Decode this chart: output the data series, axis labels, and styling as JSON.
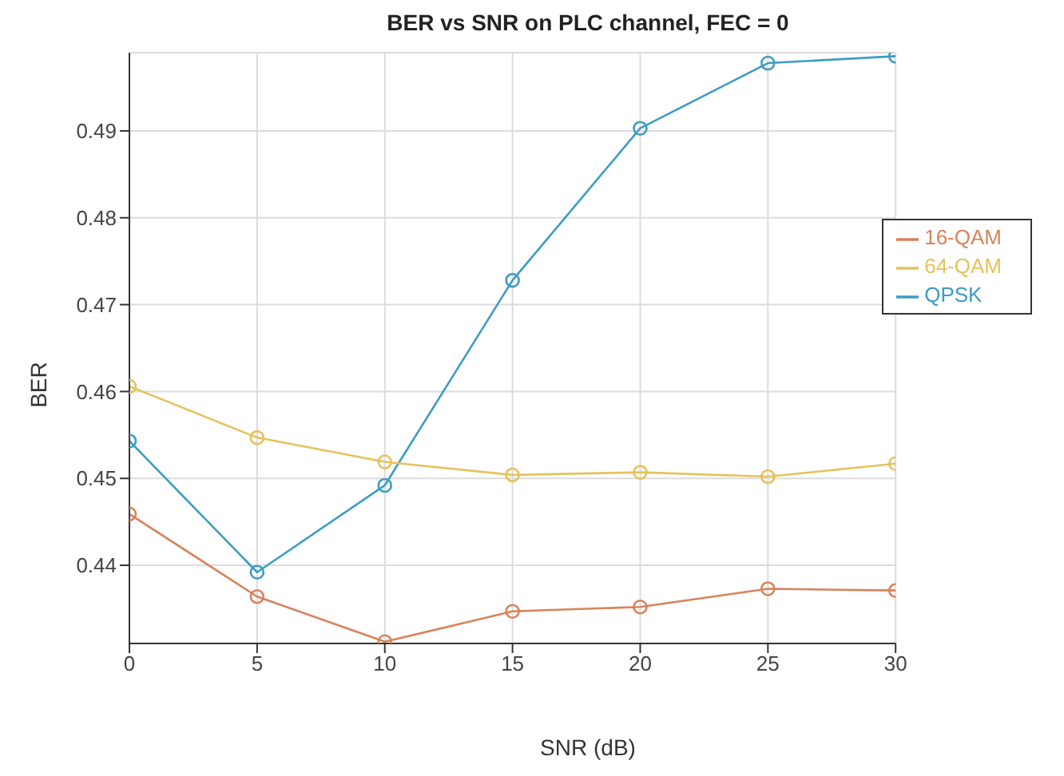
{
  "chart_data": {
    "type": "line",
    "title": "BER vs SNR on PLC channel, FEC = 0",
    "xlabel": "SNR (dB)",
    "ylabel": "BER",
    "x": [
      0,
      5,
      10,
      15,
      20,
      25,
      30
    ],
    "series": [
      {
        "name": "QPSK",
        "color": "#3d9cc4",
        "values": [
          0.4543,
          0.4392,
          0.4492,
          0.4728,
          0.4903,
          0.4978,
          0.4986
        ]
      },
      {
        "name": "16-QAM",
        "color": "#d9825a",
        "values": [
          0.4459,
          0.4364,
          0.4312,
          0.4347,
          0.4352,
          0.4373,
          0.4371
        ]
      },
      {
        "name": "64-QAM",
        "color": "#e6c25c",
        "values": [
          0.4606,
          0.4547,
          0.4519,
          0.4504,
          0.4507,
          0.4502,
          0.4517
        ]
      }
    ],
    "xlim": [
      0,
      30
    ],
    "xticks": [
      0,
      5,
      10,
      15,
      20,
      25,
      30
    ],
    "ylim": [
      0.431,
      0.499
    ],
    "yticks": [
      0.44,
      0.45,
      0.46,
      0.47,
      0.48,
      0.49
    ],
    "grid": true,
    "legend": "right",
    "marker": "circle",
    "line_style": "solid"
  }
}
